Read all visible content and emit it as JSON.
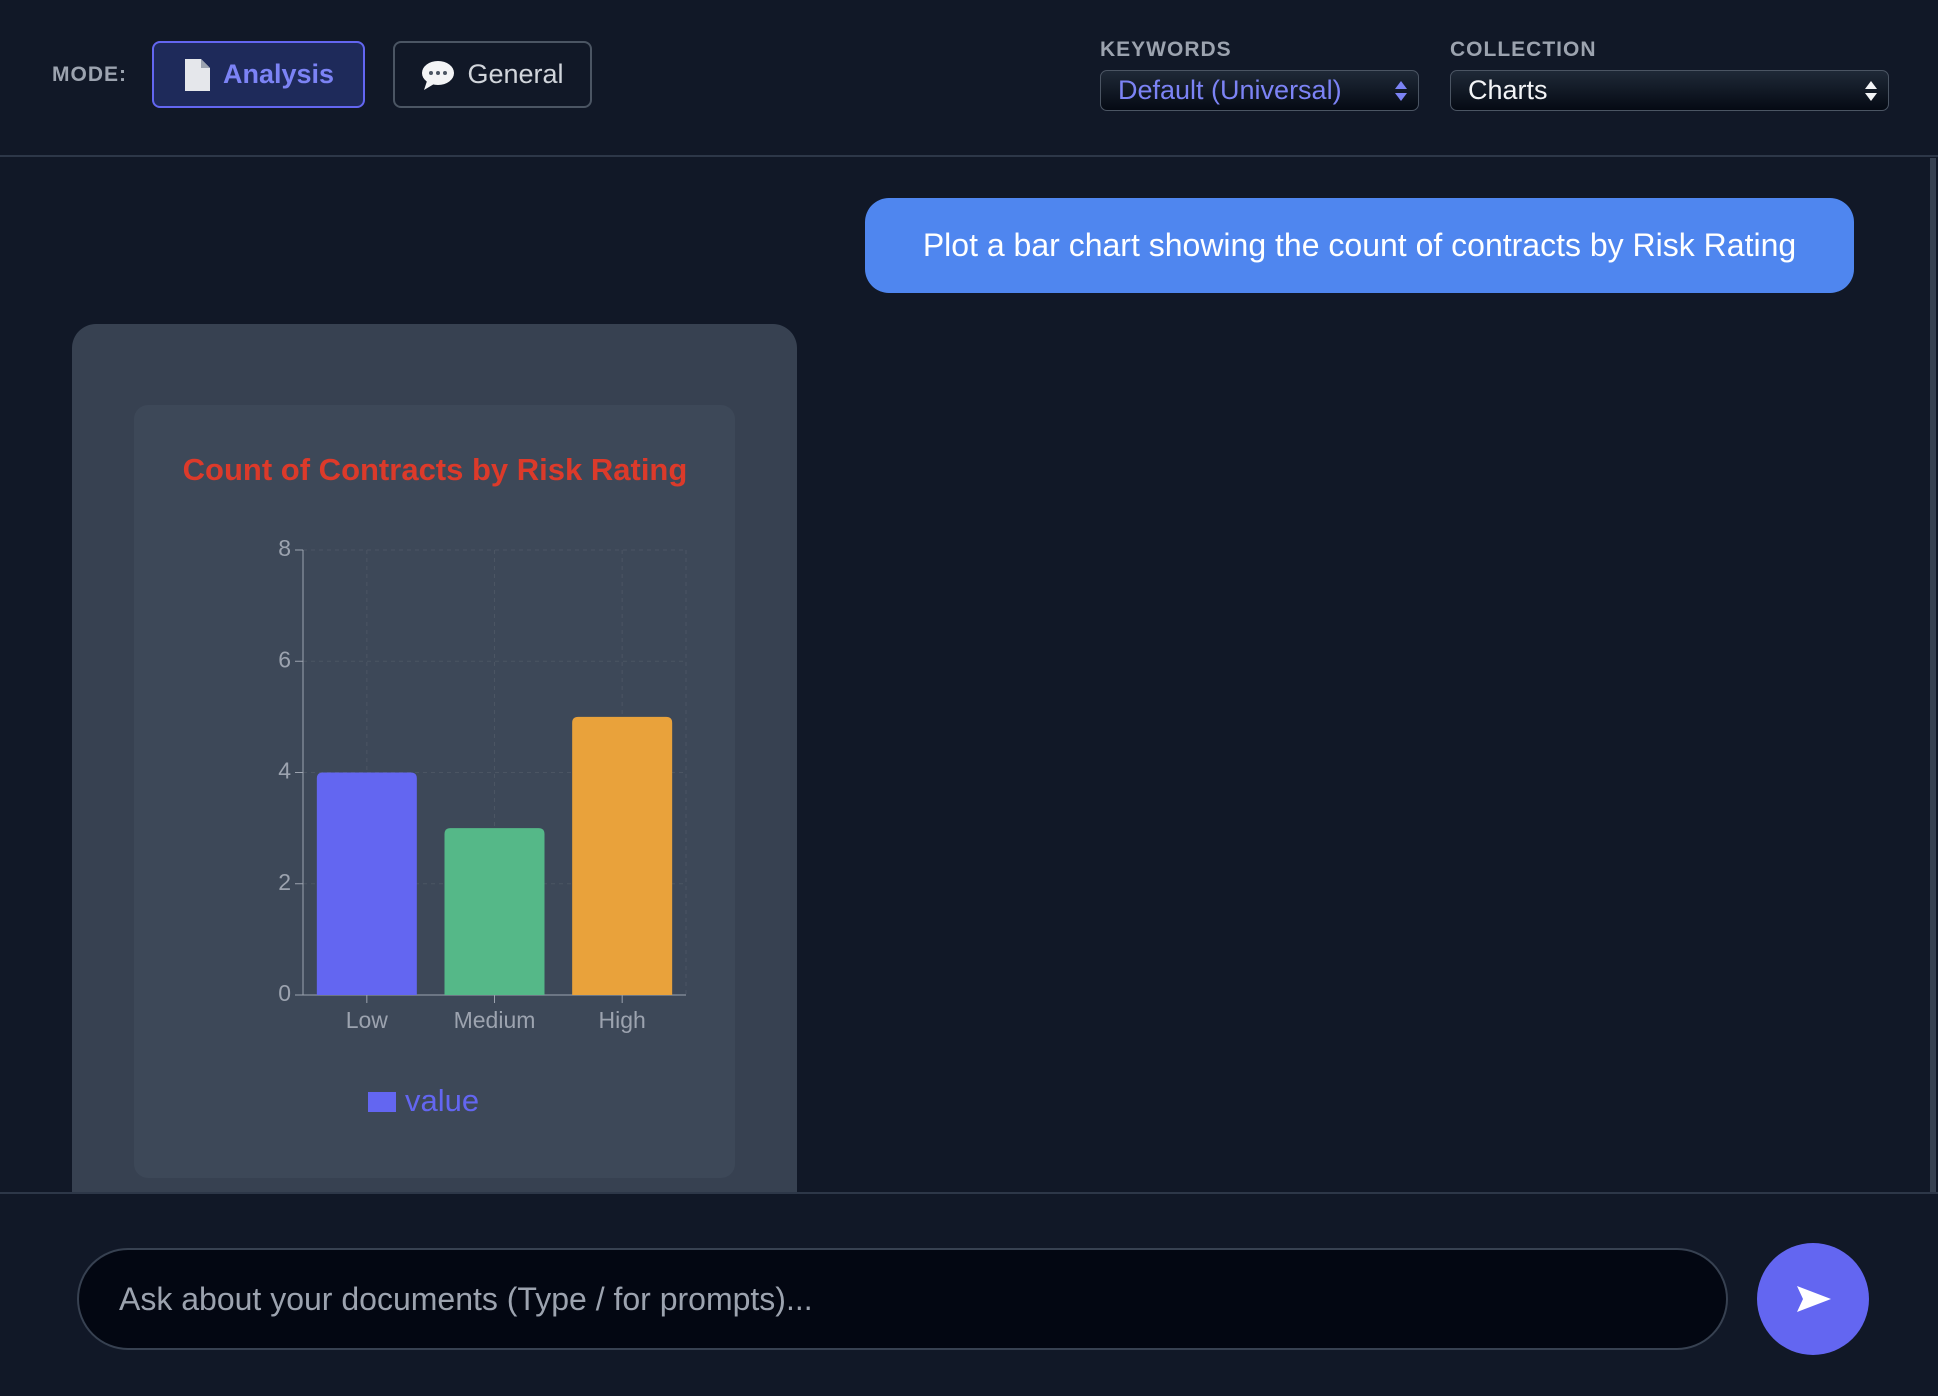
{
  "toolbar": {
    "mode_label": "MODE:",
    "buttons": [
      "Analysis",
      "General"
    ],
    "keywords": {
      "label": "KEYWORDS",
      "value": "Default (Universal)"
    },
    "collection": {
      "label": "COLLECTION",
      "value": "Charts"
    }
  },
  "message": "Plot a bar chart showing the count of contracts by Risk Rating",
  "chart_data": {
    "type": "bar",
    "title": "Count of Contracts by Risk Rating",
    "categories": [
      "Low",
      "Medium",
      "High"
    ],
    "series": [
      {
        "name": "value",
        "color": "#6366f1",
        "values": [
          4,
          3,
          5
        ]
      }
    ],
    "colors": [
      "#6366f1",
      "#55b888",
      "#e9a23b"
    ],
    "ylim": [
      0,
      8
    ],
    "yticks": [
      0,
      2,
      4,
      6,
      8
    ],
    "grid": true
  },
  "input": {
    "placeholder": "Ask about your documents (Type / for prompts)..."
  }
}
